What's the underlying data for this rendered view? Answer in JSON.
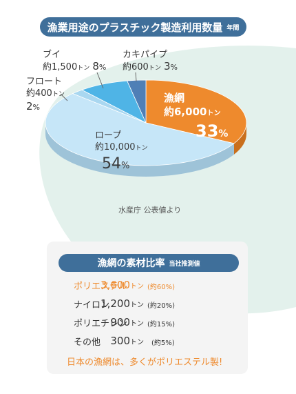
{
  "title": {
    "main": "漁業用途のプラスチック製造利用数量",
    "sub": "年間"
  },
  "chart_data": {
    "type": "pie",
    "slices": [
      {
        "name": "漁網",
        "amount": "約6,000",
        "unit": "トン",
        "percent": 33,
        "color": "#ee8a2d",
        "side_color": "#c96f1c"
      },
      {
        "name": "ロープ",
        "amount": "約10,000",
        "unit": "トン",
        "percent": 54,
        "color": "#c6e6f8",
        "side_color": "#9ec3d8"
      },
      {
        "name": "フロート",
        "amount": "約400",
        "unit": "トン",
        "percent": 2,
        "color": "#a9d7f0",
        "side_color": "#8ab6cf"
      },
      {
        "name": "ブイ",
        "amount": "約1,500",
        "unit": "トン",
        "percent": 8,
        "color": "#4fb4e6",
        "side_color": "#3490c0"
      },
      {
        "name": "カキパイプ",
        "amount": "約600",
        "unit": "トン",
        "percent": 3,
        "color": "#4f7fb6",
        "side_color": "#3b6594"
      }
    ]
  },
  "pct_suffix": "%",
  "source": "水産庁 公表値より",
  "breakdown": {
    "title": "漁網の素材比率",
    "sub": "当社推測値",
    "rows": [
      {
        "name": "ポリエステル",
        "amount": "3,600",
        "unit": "トン",
        "ratio": "(約60%)",
        "highlight": true
      },
      {
        "name": "ナイロン",
        "amount": "1,200",
        "unit": "トン",
        "ratio": "(約20%)",
        "highlight": false
      },
      {
        "name": "ポリエチレン",
        "amount": "900",
        "unit": "トン",
        "ratio": "(約15%)",
        "highlight": false
      },
      {
        "name": "その他",
        "amount": "300",
        "unit": "トン",
        "ratio": "(約5%)",
        "highlight": false
      }
    ],
    "conclusion": "日本の漁網は、多くがポリエステル製!"
  },
  "colors": {
    "accent": "#ee8a2d",
    "pill": "#3f6f9a",
    "background_blob": "#e3f1ec",
    "card": "#f4f4f4"
  }
}
